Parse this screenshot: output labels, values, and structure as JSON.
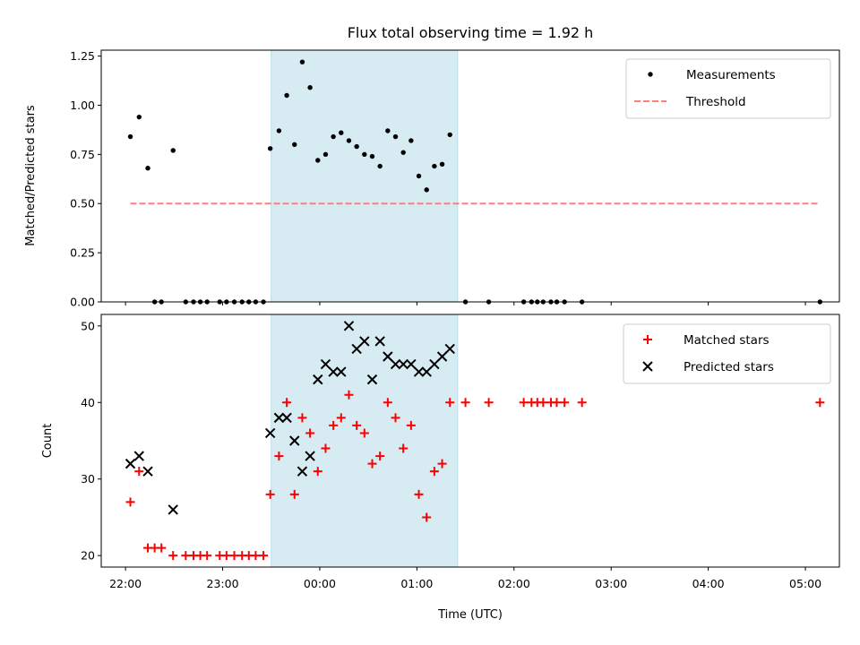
{
  "chart_data": [
    {
      "type": "scatter",
      "title": "Flux total observing time = 1.92 h",
      "xlabel": "",
      "ylabel": "Matched/Predicted stars",
      "ylim": [
        0,
        1.28
      ],
      "yticks": [
        "0.00",
        "0.25",
        "0.50",
        "0.75",
        "1.00",
        "1.25"
      ],
      "xlim_hours": [
        -2.25,
        5.35
      ],
      "highlight_span_hours": [
        -0.5,
        1.42
      ],
      "legend_position": "top-right",
      "series": [
        {
          "name": "Measurements",
          "marker": "dot",
          "color": "#000000",
          "x": [
            -1.95,
            -1.86,
            -1.77,
            -1.7,
            -1.63,
            -1.51,
            -1.38,
            -1.3,
            -1.23,
            -1.16,
            -1.03,
            -0.96,
            -0.88,
            -0.8,
            -0.73,
            -0.66,
            -0.58,
            -0.51,
            -0.42,
            -0.34,
            -0.26,
            -0.18,
            -0.1,
            -0.02,
            0.06,
            0.14,
            0.22,
            0.3,
            0.38,
            0.46,
            0.54,
            0.62,
            0.7,
            0.78,
            0.86,
            0.94,
            1.02,
            1.1,
            1.18,
            1.26,
            1.34,
            1.5,
            1.74,
            2.1,
            2.18,
            2.24,
            2.3,
            2.38,
            2.44,
            2.52,
            2.7,
            5.15
          ],
          "y": [
            0.84,
            0.94,
            0.68,
            0.0,
            0.0,
            0.77,
            0.0,
            0.0,
            0.0,
            0.0,
            0.0,
            0.0,
            0.0,
            0.0,
            0.0,
            0.0,
            0.0,
            0.78,
            0.87,
            1.05,
            0.8,
            1.22,
            1.09,
            0.72,
            0.75,
            0.84,
            0.86,
            0.82,
            0.79,
            0.75,
            0.74,
            0.69,
            0.87,
            0.84,
            0.76,
            0.82,
            0.64,
            0.57,
            0.69,
            0.7,
            0.85,
            0.0,
            0.0,
            0.0,
            0.0,
            0.0,
            0.0,
            0.0,
            0.0,
            0.0,
            0.0,
            0.0
          ]
        },
        {
          "name": "Threshold",
          "style": "dashed",
          "color": "#ff7f7f",
          "x": [
            -1.95,
            5.15
          ],
          "y": [
            0.5,
            0.5
          ]
        }
      ]
    },
    {
      "type": "scatter",
      "title": "",
      "xlabel": "Time (UTC)",
      "ylabel": "Count",
      "ylim": [
        18.5,
        51.5
      ],
      "yticks": [
        "20",
        "30",
        "40",
        "50"
      ],
      "xlim_hours": [
        -2.25,
        5.35
      ],
      "xtick_hours": [
        -2,
        -1,
        0,
        1,
        2,
        3,
        4,
        5
      ],
      "xtick_labels": [
        "22:00",
        "23:00",
        "00:00",
        "01:00",
        "02:00",
        "03:00",
        "04:00",
        "05:00"
      ],
      "highlight_span_hours": [
        -0.5,
        1.42
      ],
      "legend_position": "top-right",
      "series": [
        {
          "name": "Matched stars",
          "marker": "plus",
          "color": "#ff0000",
          "x": [
            -1.95,
            -1.86,
            -1.77,
            -1.7,
            -1.63,
            -1.51,
            -1.38,
            -1.3,
            -1.23,
            -1.16,
            -1.03,
            -0.96,
            -0.88,
            -0.8,
            -0.73,
            -0.66,
            -0.58,
            -0.51,
            -0.42,
            -0.34,
            -0.26,
            -0.18,
            -0.1,
            -0.02,
            0.06,
            0.14,
            0.22,
            0.3,
            0.38,
            0.46,
            0.54,
            0.62,
            0.7,
            0.78,
            0.86,
            0.94,
            1.02,
            1.1,
            1.18,
            1.26,
            1.34,
            1.5,
            1.74,
            2.1,
            2.18,
            2.24,
            2.3,
            2.38,
            2.44,
            2.52,
            2.7,
            5.15
          ],
          "y": [
            27,
            31,
            21,
            21,
            21,
            20,
            20,
            20,
            20,
            20,
            20,
            20,
            20,
            20,
            20,
            20,
            20,
            28,
            33,
            40,
            28,
            38,
            36,
            31,
            34,
            37,
            38,
            41,
            37,
            36,
            32,
            33,
            40,
            38,
            34,
            37,
            28,
            25,
            31,
            32,
            40,
            40,
            40,
            40,
            40,
            40,
            40,
            40,
            40,
            40,
            40,
            40
          ]
        },
        {
          "name": "Predicted stars",
          "marker": "x",
          "color": "#000000",
          "x": [
            -1.95,
            -1.86,
            -1.77,
            -1.51,
            -0.51,
            -0.42,
            -0.34,
            -0.26,
            -0.18,
            -0.1,
            -0.02,
            0.06,
            0.14,
            0.22,
            0.3,
            0.38,
            0.46,
            0.54,
            0.62,
            0.7,
            0.78,
            0.86,
            0.94,
            1.02,
            1.1,
            1.18,
            1.26,
            1.34
          ],
          "y": [
            32,
            33,
            31,
            26,
            36,
            38,
            38,
            35,
            31,
            33,
            43,
            45,
            44,
            44,
            50,
            47,
            48,
            43,
            48,
            46,
            45,
            45,
            45,
            44,
            44,
            45,
            46,
            47
          ]
        }
      ]
    }
  ]
}
